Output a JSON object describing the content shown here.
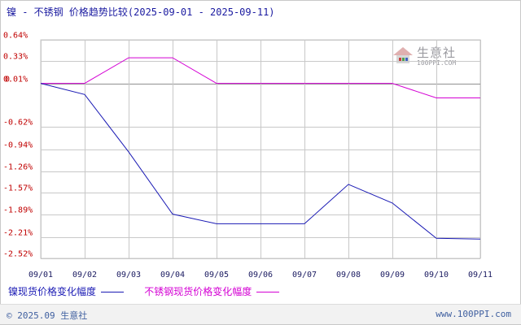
{
  "title": "镍 - 不锈钢 价格趋势比较(2025-09-01 - 2025-09-11)",
  "watermark": {
    "name": "生意社",
    "url": "100PPI.COM"
  },
  "footer": {
    "copyright": "© 2025.09 生意社",
    "site": "www.100PPI.com"
  },
  "colors": {
    "series1": "#1a1ab4",
    "series2": "#d400d4",
    "axis_labels": "#c00000",
    "grid": "#c8c8c8",
    "zero_line": "#909090"
  },
  "chart_data": {
    "type": "line",
    "title": "镍 - 不锈钢 价格趋势比较(2025-09-01 - 2025-09-11)",
    "categories": [
      "09/01",
      "09/02",
      "09/03",
      "09/04",
      "09/05",
      "09/06",
      "09/07",
      "09/08",
      "09/09",
      "09/10",
      "09/11"
    ],
    "y_ticks": [
      "0.64%",
      "0.33%",
      "0.01%",
      "0",
      "-0.62%",
      "-0.94%",
      "-1.26%",
      "-1.57%",
      "-1.89%",
      "-2.21%",
      "-2.52%"
    ],
    "y_tick_values": [
      0.64,
      0.33,
      0.01,
      0,
      -0.62,
      -0.94,
      -1.26,
      -1.57,
      -1.89,
      -2.21,
      -2.52
    ],
    "ylim": [
      -2.52,
      0.64
    ],
    "grid": true,
    "legend_position": "bottom-left",
    "series": [
      {
        "name": "镍现货价格变化幅度",
        "values": [
          0.01,
          -0.15,
          -0.98,
          -1.88,
          -2.02,
          -2.02,
          -2.02,
          -1.45,
          -1.72,
          -2.23,
          -2.24
        ]
      },
      {
        "name": "不锈钢现货价格变化幅度",
        "values": [
          0.01,
          0.01,
          0.38,
          0.38,
          0.01,
          0.01,
          0.01,
          0.01,
          0.01,
          -0.2,
          -0.2
        ]
      }
    ]
  }
}
